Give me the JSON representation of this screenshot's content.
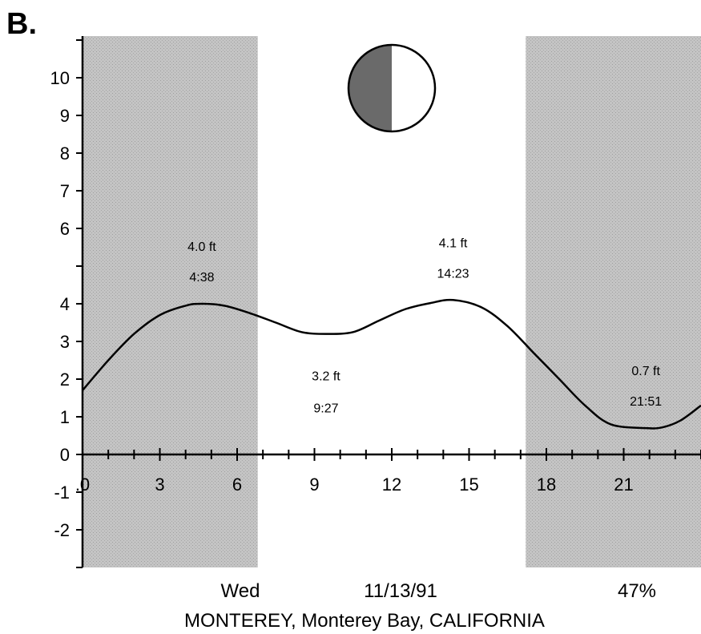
{
  "panel_label": "B.",
  "footer": {
    "day": "Wed",
    "date": "11/13/91",
    "moon_illumination": "47%",
    "location": "MONTEREY, Monterey Bay, CALIFORNIA"
  },
  "moon": {
    "phase": "first quarter",
    "dark_side": "left",
    "dark_color": "#6a6a6a"
  },
  "colors": {
    "night_shade": "#bdbdbd",
    "curve": "#000000",
    "background": "#ffffff"
  },
  "chart_data": {
    "type": "line",
    "title": "",
    "xlabel": "",
    "ylabel": "",
    "x_ticks": [
      0,
      3,
      6,
      9,
      12,
      15,
      18,
      21
    ],
    "x_tick_labels": [
      ".0",
      "3",
      "6",
      "9",
      "12",
      "15",
      "18",
      "21"
    ],
    "x_minor_step": 1,
    "y_ticks": [
      -2,
      -1,
      0,
      1,
      2,
      3,
      4,
      6,
      7,
      8,
      9,
      10
    ],
    "y_tick_labels": [
      "-2",
      "-1",
      "0",
      "1",
      "2",
      "3",
      "4",
      "6",
      "7",
      "8",
      "9",
      "10"
    ],
    "xlim": [
      0,
      24
    ],
    "ylim": [
      -3,
      11
    ],
    "night_periods": [
      [
        0,
        6.8
      ],
      [
        17.2,
        24
      ]
    ],
    "series": [
      {
        "x": [
          0,
          1,
          2,
          3,
          4,
          4.63,
          5.5,
          6.5,
          7.5,
          8.5,
          9.45,
          10.5,
          11.5,
          12.5,
          13.5,
          14.38,
          15.5,
          16.5,
          17.5,
          18.5,
          19.5,
          20.5,
          21.86,
          22.5,
          23.2,
          24
        ],
        "y": [
          1.7,
          2.5,
          3.2,
          3.7,
          3.95,
          4.0,
          3.95,
          3.75,
          3.5,
          3.25,
          3.2,
          3.25,
          3.55,
          3.85,
          4.02,
          4.1,
          3.9,
          3.4,
          2.7,
          2.0,
          1.3,
          0.8,
          0.7,
          0.72,
          0.9,
          1.3
        ]
      }
    ],
    "annotations": [
      {
        "height": "4.0 ft",
        "time": "4:38",
        "x": 4.63,
        "y": 4.0,
        "placement": "above"
      },
      {
        "height": "3.2 ft",
        "time": "9:27",
        "x": 9.45,
        "y": 3.2,
        "placement": "below"
      },
      {
        "height": "4.1 ft",
        "time": "14:23",
        "x": 14.38,
        "y": 4.1,
        "placement": "above"
      },
      {
        "height": "0.7 ft",
        "time": "21:51",
        "x": 21.86,
        "y": 0.7,
        "placement": "above"
      }
    ],
    "grid": false,
    "legend": "none"
  }
}
